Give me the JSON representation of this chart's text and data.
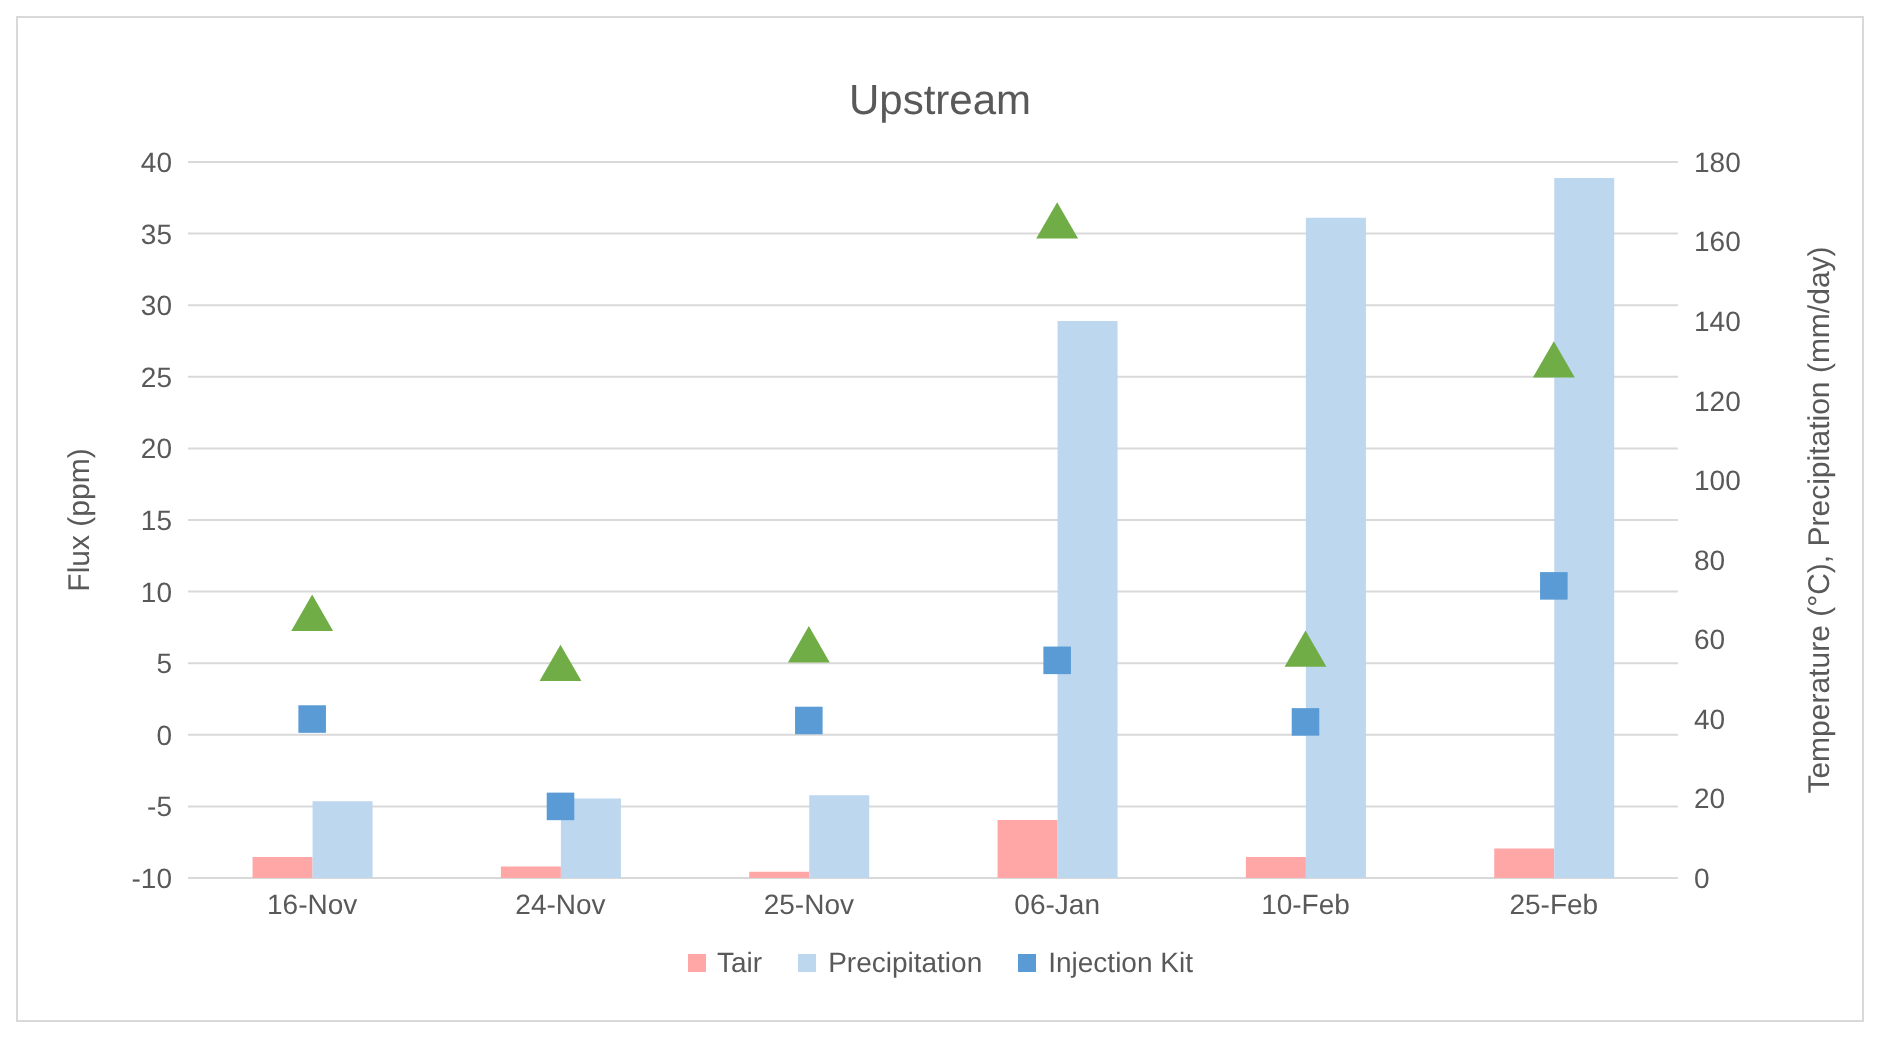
{
  "chart_data": {
    "type": "bar",
    "title": "Upstream",
    "ylabel": "Flux (ppm)",
    "y2label": "Temperature (°C), Precipitation (mm/day)",
    "categories": [
      "16-Nov",
      "24-Nov",
      "25-Nov",
      "06-Jan",
      "10-Feb",
      "25-Feb"
    ],
    "series": [
      {
        "name": "Tair",
        "axis": "y2",
        "color": "#ffa7a7",
        "values": [
          5.3,
          2.9,
          1.6,
          14.6,
          5.3,
          7.4
        ]
      },
      {
        "name": "Precipitation",
        "axis": "y2",
        "color": "#bdd7ee",
        "values": [
          19.3,
          20,
          20.8,
          140,
          166,
          176
        ]
      },
      {
        "name": "Injection Kit",
        "type": "scatter",
        "marker": "square",
        "color": "#5b9bd5",
        "values": [
          1.1,
          -5.0,
          1.0,
          5.2,
          0.9,
          10.4
        ]
      },
      {
        "type": "scatter",
        "marker": "triangle",
        "color": "#70ad47",
        "values": [
          8.1,
          4.6,
          5.9,
          35.5,
          5.6,
          25.8
        ]
      }
    ],
    "ylim": [
      -10,
      40
    ],
    "yticks": [
      -10,
      -5,
      0,
      5,
      10,
      15,
      20,
      25,
      30,
      35,
      40
    ],
    "y2lim": [
      0,
      180
    ],
    "y2ticks": [
      0,
      20,
      40,
      60,
      80,
      100,
      120,
      140,
      160,
      180
    ],
    "grid": "y",
    "legend": "bottom"
  }
}
